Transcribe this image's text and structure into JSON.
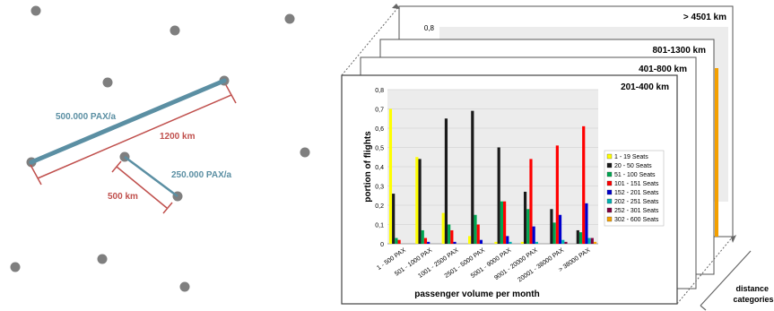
{
  "network": {
    "route_a_volume": "500.000 PAX/a",
    "route_a_distance": "1200 km",
    "route_b_volume": "250.000 PAX/a",
    "route_b_distance": "500 km",
    "colors": {
      "route": "#5b8fa3",
      "distance": "#c0504d",
      "airport": "#7f7f7f"
    }
  },
  "stack": {
    "back_panels": [
      {
        "label": "> 4501 km",
        "partial_tick": "0,8"
      },
      {
        "label": "801-1300 km"
      },
      {
        "label": "401-800 km"
      }
    ],
    "front_label": "201-400 km",
    "side_axis_label": "distance categories"
  },
  "chart_data": {
    "type": "bar",
    "xlabel": "passenger volume per month",
    "ylabel": "portion of flights",
    "ylim": [
      0,
      0.8
    ],
    "yticks": [
      "0",
      "0,1",
      "0,2",
      "0,3",
      "0,4",
      "0,5",
      "0,6",
      "0,7",
      "0,8"
    ],
    "categories": [
      "1 - 500 PAX",
      "501 - 1000 PAX",
      "1001 - 2500 PAX",
      "2501 - 5000 PAX",
      "5001 - 9000 PAX",
      "9001 - 20000 PAX",
      "20001 - 38000 PAX",
      "> 38000 PAX"
    ],
    "series": [
      {
        "name": "1 - 19 Seats",
        "color": "#ffff00",
        "values": [
          0.7,
          0.45,
          0.16,
          0.04,
          0.01,
          0.01,
          0.0,
          0.0
        ]
      },
      {
        "name": "20 - 50 Seats",
        "color": "#1a1a1a",
        "values": [
          0.26,
          0.44,
          0.65,
          0.69,
          0.5,
          0.27,
          0.18,
          0.07
        ]
      },
      {
        "name": "51 - 100 Seats",
        "color": "#00a651",
        "values": [
          0.03,
          0.07,
          0.1,
          0.15,
          0.22,
          0.18,
          0.11,
          0.06
        ]
      },
      {
        "name": "101 - 151 Seats",
        "color": "#ff0000",
        "values": [
          0.02,
          0.03,
          0.07,
          0.1,
          0.22,
          0.44,
          0.51,
          0.61
        ]
      },
      {
        "name": "152 - 201 Seats",
        "color": "#0000cc",
        "values": [
          0.0,
          0.01,
          0.01,
          0.02,
          0.04,
          0.09,
          0.15,
          0.21
        ]
      },
      {
        "name": "202 - 251 Seats",
        "color": "#00b0b0",
        "values": [
          0.0,
          0.0,
          0.0,
          0.0,
          0.01,
          0.01,
          0.02,
          0.03
        ]
      },
      {
        "name": "252 - 301 Seats",
        "color": "#800040",
        "values": [
          0.0,
          0.0,
          0.0,
          0.0,
          0.0,
          0.0,
          0.01,
          0.03
        ]
      },
      {
        "name": "302 - 600 Seats",
        "color": "#f4a000",
        "values": [
          0.0,
          0.0,
          0.0,
          0.0,
          0.0,
          0.0,
          0.0,
          0.01
        ]
      }
    ]
  }
}
